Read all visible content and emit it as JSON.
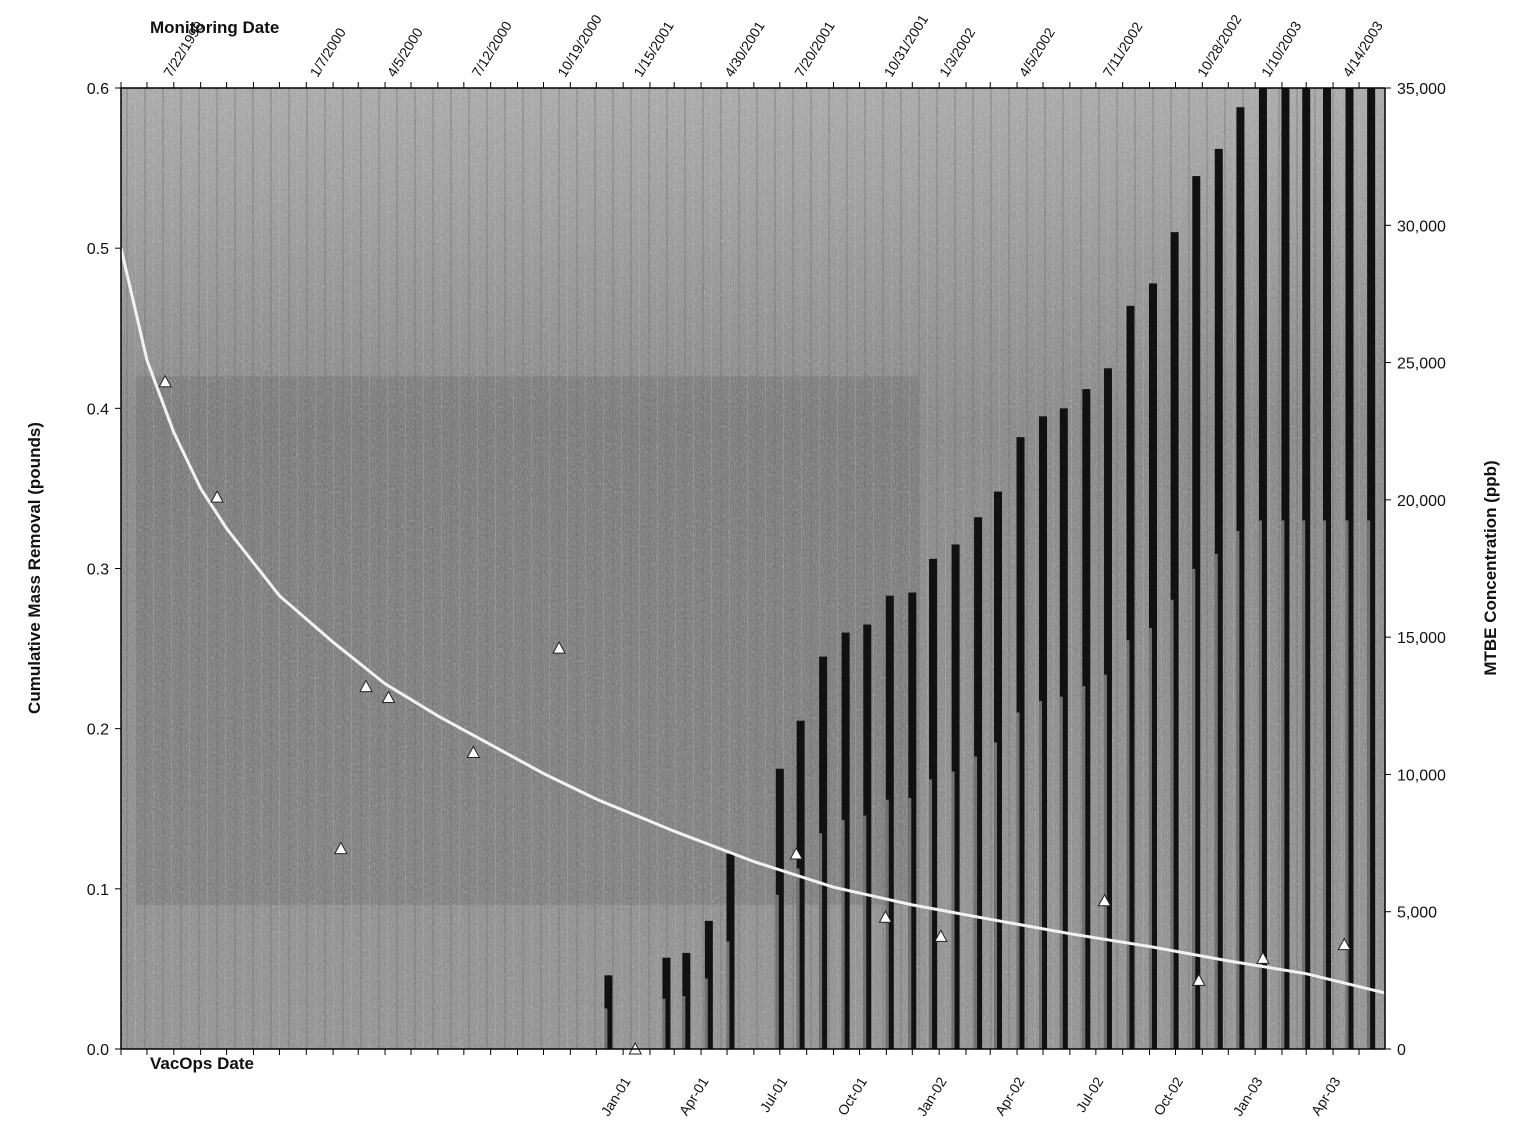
{
  "chart_data": {
    "type": "bar",
    "title": "",
    "top_axis_title": "Monitoring Date",
    "bottom_axis_title": "VacOps Date",
    "ylabel_left": "Cumulative Mass Removal (pounds)",
    "ylabel_right": "MTBE Concentration (ppb)",
    "ylim_left": [
      0,
      0.6
    ],
    "ylim_right": [
      0,
      35000
    ],
    "yticks_left": [
      "0.0",
      "0.1",
      "0.2",
      "0.3",
      "0.4",
      "0.5",
      "0.6"
    ],
    "yticks_right": [
      "0",
      "5,000",
      "10,000",
      "15,000",
      "20,000",
      "25,000",
      "30,000",
      "35,000"
    ],
    "grid": false,
    "background": "grayscale photographic texture",
    "xlim": [
      "1999-06-01",
      "2003-05-31"
    ],
    "monitoring_dates": [
      "7/22/1999",
      "1/7/2000",
      "4/5/2000",
      "7/12/2000",
      "10/19/2000",
      "1/15/2001",
      "4/30/2001",
      "7/20/2001",
      "10/31/2001",
      "1/3/2002",
      "4/5/2002",
      "7/11/2002",
      "10/28/2002",
      "1/10/2003",
      "4/14/2003"
    ],
    "vacops_dates": [
      "Jan-01",
      "Apr-01",
      "Jul-01",
      "Oct-01",
      "Jan-02",
      "Apr-02",
      "Jul-02",
      "Oct-02",
      "Jan-03",
      "Apr-03"
    ],
    "series": [
      {
        "kind": "bar",
        "axis": "left",
        "x": [
          "2000-12-15",
          "2001-02-20",
          "2001-03-15",
          "2001-04-10",
          "2001-05-05",
          "2001-07-01",
          "2001-07-25",
          "2001-08-20",
          "2001-09-15",
          "2001-10-10",
          "2001-11-05",
          "2001-12-01",
          "2001-12-25",
          "2002-01-20",
          "2002-02-15",
          "2002-03-10",
          "2002-04-05",
          "2002-05-01",
          "2002-05-25",
          "2002-06-20",
          "2002-07-15",
          "2002-08-10",
          "2002-09-05",
          "2002-09-30",
          "2002-10-25",
          "2002-11-20",
          "2002-12-15",
          "2003-01-10",
          "2003-02-05",
          "2003-03-01",
          "2003-03-25",
          "2003-04-20",
          "2003-05-15"
        ],
        "values": [
          0.046,
          0.057,
          0.06,
          0.08,
          0.122,
          0.175,
          0.205,
          0.245,
          0.26,
          0.265,
          0.283,
          0.285,
          0.306,
          0.315,
          0.332,
          0.348,
          0.382,
          0.395,
          0.4,
          0.412,
          0.425,
          0.464,
          0.478,
          0.51,
          0.545,
          0.562,
          0.588,
          0.6,
          0.6,
          0.6,
          0.6,
          0.6,
          0.6
        ],
        "color": "#111111"
      },
      {
        "kind": "scatter",
        "axis": "right",
        "marker": "open-triangle",
        "x": [
          "1999-07-22",
          "1999-09-20",
          "2000-02-10",
          "2000-03-10",
          "2000-04-05",
          "2000-07-12",
          "2000-10-19",
          "2001-01-15",
          "2001-07-20",
          "2001-10-31",
          "2002-01-03",
          "2002-07-11",
          "2002-10-28",
          "2003-01-10",
          "2003-04-14"
        ],
        "values": [
          24300,
          20100,
          7300,
          13200,
          12800,
          10800,
          14600,
          0,
          7100,
          4800,
          4100,
          5400,
          2500,
          3300,
          3800
        ],
        "color": "#ffffff"
      },
      {
        "kind": "line",
        "axis": "left",
        "x": [
          "1999-06-01",
          "1999-07-01",
          "1999-08-01",
          "1999-09-01",
          "1999-10-01",
          "1999-12-01",
          "2000-02-01",
          "2000-04-01",
          "2000-06-01",
          "2000-08-01",
          "2000-10-01",
          "2000-12-01",
          "2001-03-01",
          "2001-06-01",
          "2001-09-01",
          "2001-12-01",
          "2002-03-01",
          "2002-06-01",
          "2002-09-01",
          "2002-12-01",
          "2003-03-01",
          "2003-05-31"
        ],
        "values": [
          0.5,
          0.43,
          0.385,
          0.35,
          0.325,
          0.283,
          0.254,
          0.228,
          0.208,
          0.19,
          0.172,
          0.156,
          0.136,
          0.117,
          0.101,
          0.09,
          0.081,
          0.072,
          0.064,
          0.055,
          0.047,
          0.035
        ],
        "color": "#f2f2f2"
      }
    ]
  }
}
